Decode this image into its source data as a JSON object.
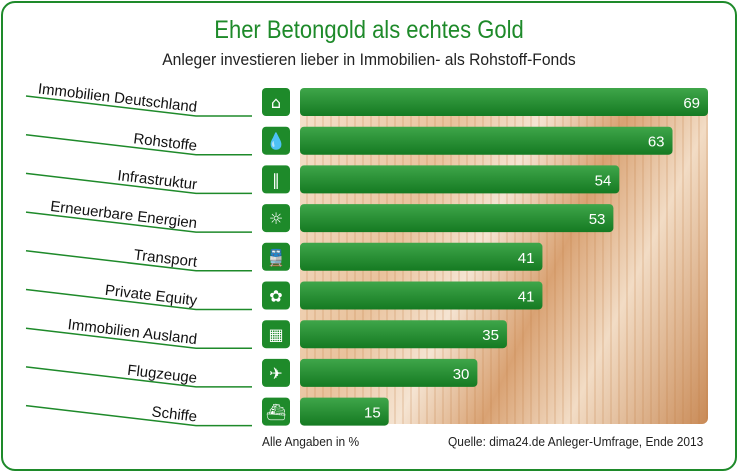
{
  "chart_data": {
    "type": "bar",
    "orientation": "horizontal",
    "title": "Eher Betongold als echtes Gold",
    "subtitle": "Anleger investieren lieber in Immobilien- als Rohstoff-Fonds",
    "categories": [
      "Immobilien Deutschland",
      "Rohstoffe",
      "Infrastruktur",
      "Erneuerbare Energien",
      "Transport",
      "Private Equity",
      "Immobilien Ausland",
      "Flugzeuge",
      "Schiffe"
    ],
    "icons": [
      "house-icon",
      "drop-icon",
      "road-icon",
      "sun-icon",
      "train-icon",
      "flower-icon",
      "building-icon",
      "airplane-icon",
      "ship-icon"
    ],
    "values": [
      69,
      63,
      54,
      53,
      41,
      41,
      35,
      30,
      15
    ],
    "xlim": [
      0,
      69
    ],
    "unit_note": "Alle Angaben in %",
    "source": "Quelle: dima24.de Anleger-Umfrage, Ende 2013",
    "colors": {
      "bar": "#1e8a2a",
      "accent": "#1e8a2a"
    }
  }
}
